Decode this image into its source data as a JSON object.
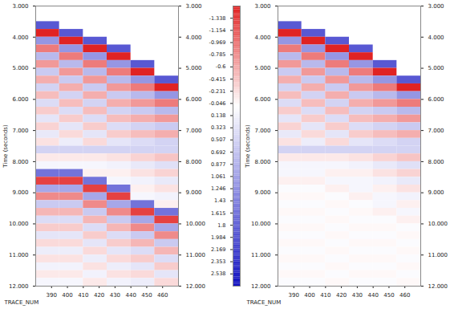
{
  "chart_data": [
    {
      "type": "heatmap",
      "x_label": "TRACE_NUM",
      "y_label": "Time (seconds)",
      "xlim": [
        380,
        470
      ],
      "ylim": [
        3,
        12
      ],
      "xticks": [
        390,
        400,
        410,
        420,
        430,
        440,
        450,
        460
      ],
      "yticks": [
        {
          "value": 3,
          "label": "3.000"
        },
        {
          "value": 4,
          "label": "4.000"
        },
        {
          "value": 5,
          "label": "5.000"
        },
        {
          "value": 6,
          "label": "6.000"
        },
        {
          "value": 7,
          "label": "7.000"
        },
        {
          "value": 8,
          "label": "8.000"
        },
        {
          "value": 9,
          "label": "9.000"
        },
        {
          "value": 10,
          "label": "10.000"
        },
        {
          "value": 11,
          "label": "11.000"
        },
        {
          "value": 12,
          "label": "12.000"
        }
      ],
      "x_bins": [
        380,
        395,
        410,
        425,
        440,
        455,
        470
      ],
      "y_bins": [
        3,
        3.25,
        3.5,
        3.75,
        4,
        4.25,
        4.5,
        4.75,
        5,
        5.25,
        5.5,
        5.75,
        6,
        6.25,
        6.5,
        6.75,
        7,
        7.25,
        7.5,
        7.75,
        8,
        8.25,
        8.5,
        8.75,
        9,
        9.25,
        9.5,
        9.75,
        10,
        10.25,
        10.5,
        10.75,
        11,
        11.25,
        11.5,
        11.75,
        12
      ],
      "values": [
        [
          null,
          null,
          1.9,
          -1.5,
          1.2,
          -0.9,
          0.8,
          -0.7,
          0.6,
          -0.55,
          0.5,
          -0.45,
          0.4,
          -0.35,
          0.3,
          -0.3,
          0.25,
          -0.2,
          0.5,
          -0.15,
          0.1,
          1.6,
          -1.3,
          1.0,
          -0.8,
          0.6,
          -0.5,
          0.4,
          -0.35,
          0.3,
          -0.25,
          0.2,
          -0.2,
          0.15,
          -0.15,
          0.1
        ],
        [
          null,
          null,
          null,
          1.9,
          -1.5,
          1.2,
          -0.9,
          0.8,
          -0.7,
          0.6,
          -0.55,
          0.5,
          -0.45,
          0.4,
          -0.35,
          0.3,
          -0.25,
          0.2,
          0.5,
          -0.15,
          0.1,
          1.6,
          -1.3,
          1.0,
          -0.8,
          0.6,
          -0.5,
          0.4,
          -0.35,
          0.3,
          -0.25,
          0.2,
          -0.2,
          0.15,
          -0.15,
          0.1
        ],
        [
          null,
          null,
          null,
          null,
          1.9,
          -1.5,
          1.2,
          -0.9,
          0.8,
          -0.7,
          0.6,
          -0.55,
          0.5,
          -0.45,
          0.4,
          -0.35,
          0.3,
          -0.25,
          0.5,
          -0.15,
          0.1,
          -0.1,
          1.6,
          -1.3,
          1.0,
          -0.8,
          0.6,
          -0.5,
          0.4,
          -0.35,
          0.3,
          -0.25,
          0.2,
          -0.2,
          0.15,
          -0.15
        ],
        [
          null,
          null,
          null,
          null,
          null,
          1.9,
          -1.5,
          1.2,
          -0.9,
          0.8,
          -0.7,
          0.6,
          -0.55,
          0.5,
          -0.45,
          0.4,
          -0.35,
          0.3,
          0.5,
          -0.2,
          0.15,
          -0.1,
          0.1,
          1.6,
          -1.3,
          1.0,
          -0.8,
          0.6,
          -0.5,
          0.4,
          -0.35,
          0.3,
          -0.25,
          0.2,
          -0.2,
          0.15
        ],
        [
          null,
          null,
          null,
          null,
          null,
          null,
          null,
          1.9,
          -1.5,
          1.2,
          -0.9,
          0.8,
          -0.7,
          0.6,
          -0.55,
          0.5,
          -0.45,
          0.4,
          0.5,
          -0.3,
          0.25,
          -0.2,
          0.15,
          -0.1,
          0.1,
          1.6,
          -1.3,
          1.0,
          -0.8,
          0.6,
          -0.5,
          0.4,
          -0.35,
          0.3,
          -0.25,
          0.2
        ],
        [
          null,
          null,
          null,
          null,
          null,
          null,
          null,
          null,
          null,
          1.9,
          -1.5,
          1.2,
          -0.9,
          0.8,
          -0.7,
          0.6,
          -0.55,
          0.5,
          0.5,
          -0.4,
          0.35,
          -0.3,
          0.25,
          -0.2,
          0.15,
          -0.1,
          1.6,
          -1.3,
          1.0,
          -0.8,
          0.6,
          -0.5,
          0.4,
          -0.35,
          0.3,
          -0.25
        ]
      ],
      "colorbar": {
        "range": [
          -1.523,
          2.723
        ],
        "ticks": [
          -1.338,
          -1.154,
          -0.969,
          -0.785,
          -0.6,
          -0.415,
          -0.231,
          -0.046,
          0.138,
          0.323,
          0.507,
          0.692,
          0.877,
          1.061,
          1.246,
          1.43,
          1.615,
          1.8,
          1.984,
          2.169,
          2.353,
          2.538
        ],
        "colors": [
          "#e02020",
          "#ffffff",
          "#1010c0"
        ]
      }
    },
    {
      "type": "heatmap",
      "x_label": "TRACE_NUM",
      "y_label": "Time (seconds)",
      "xlim": [
        380,
        470
      ],
      "ylim": [
        3,
        12
      ],
      "xticks": [
        390,
        400,
        410,
        420,
        430,
        440,
        450,
        460
      ],
      "yticks": [
        {
          "value": 3,
          "label": "3.000"
        },
        {
          "value": 4,
          "label": "4.000"
        },
        {
          "value": 5,
          "label": "5.000"
        },
        {
          "value": 6,
          "label": "6.000"
        },
        {
          "value": 7,
          "label": "7.000"
        },
        {
          "value": 8,
          "label": "8.000"
        },
        {
          "value": 9,
          "label": "9.000"
        },
        {
          "value": 10,
          "label": "10.000"
        },
        {
          "value": 11,
          "label": "11.000"
        },
        {
          "value": 12,
          "label": "12.000"
        }
      ],
      "x_bins": [
        380,
        395,
        410,
        425,
        440,
        455,
        470
      ],
      "y_bins": [
        3,
        3.25,
        3.5,
        3.75,
        4,
        4.25,
        4.5,
        4.75,
        5,
        5.25,
        5.5,
        5.75,
        6,
        6.25,
        6.5,
        6.75,
        7,
        7.25,
        7.5,
        7.75,
        8,
        8.25,
        8.5,
        8.75,
        9,
        9.25,
        9.5,
        9.75,
        10,
        10.25,
        10.5,
        10.75,
        11,
        11.25,
        11.5,
        11.75,
        12
      ],
      "values": [
        [
          null,
          null,
          1.9,
          -1.5,
          1.2,
          -0.9,
          0.8,
          -0.7,
          0.6,
          -0.55,
          0.5,
          -0.45,
          0.4,
          -0.35,
          0.3,
          -0.3,
          0.25,
          -0.2,
          0.5,
          -0.15,
          0.1,
          0.1,
          -0.1,
          0.05,
          -0.05,
          0.05,
          -0.05,
          0.05,
          -0.05,
          0.05,
          -0.05,
          0.05,
          -0.05,
          0.05,
          -0.05,
          0.05
        ],
        [
          null,
          null,
          null,
          1.9,
          -1.5,
          1.2,
          -0.9,
          0.8,
          -0.7,
          0.6,
          -0.55,
          0.5,
          -0.45,
          0.4,
          -0.35,
          0.3,
          -0.25,
          0.2,
          0.5,
          -0.15,
          0.1,
          0.1,
          -0.1,
          0.05,
          -0.05,
          0.05,
          -0.05,
          0.05,
          -0.05,
          0.05,
          -0.05,
          0.05,
          -0.05,
          0.05,
          -0.05,
          0.05
        ],
        [
          null,
          null,
          null,
          null,
          1.9,
          -1.5,
          1.2,
          -0.9,
          0.8,
          -0.7,
          0.6,
          -0.55,
          0.5,
          -0.45,
          0.4,
          -0.35,
          0.3,
          -0.25,
          0.5,
          -0.15,
          0.1,
          -0.1,
          0.1,
          -0.1,
          0.05,
          -0.05,
          0.05,
          -0.05,
          0.05,
          -0.05,
          0.05,
          -0.05,
          0.05,
          -0.05,
          0.05,
          -0.05
        ],
        [
          null,
          null,
          null,
          null,
          null,
          1.9,
          -1.5,
          1.2,
          -0.9,
          0.8,
          -0.7,
          0.6,
          -0.55,
          0.5,
          -0.45,
          0.4,
          -0.35,
          0.3,
          0.5,
          -0.2,
          0.15,
          -0.1,
          0.1,
          0.1,
          -0.1,
          0.05,
          -0.05,
          0.05,
          -0.05,
          0.05,
          -0.05,
          0.05,
          -0.05,
          0.05,
          -0.05,
          0.05
        ],
        [
          null,
          null,
          null,
          null,
          null,
          null,
          null,
          1.9,
          -1.5,
          1.2,
          -0.9,
          0.8,
          -0.7,
          0.6,
          -0.55,
          0.5,
          -0.45,
          0.4,
          0.5,
          -0.3,
          0.25,
          -0.2,
          0.15,
          -0.1,
          0.1,
          0.1,
          -0.1,
          0.05,
          -0.05,
          0.05,
          -0.05,
          0.05,
          -0.05,
          0.05,
          -0.05,
          0.05
        ],
        [
          null,
          null,
          null,
          null,
          null,
          null,
          null,
          null,
          null,
          1.9,
          -1.5,
          1.2,
          -0.9,
          0.8,
          -0.7,
          0.6,
          -0.55,
          0.5,
          0.5,
          -0.4,
          0.35,
          -0.3,
          0.25,
          -0.2,
          0.15,
          -0.1,
          0.1,
          -0.1,
          0.05,
          -0.05,
          0.05,
          -0.05,
          0.05,
          -0.05,
          0.05,
          -0.05
        ]
      ]
    }
  ]
}
